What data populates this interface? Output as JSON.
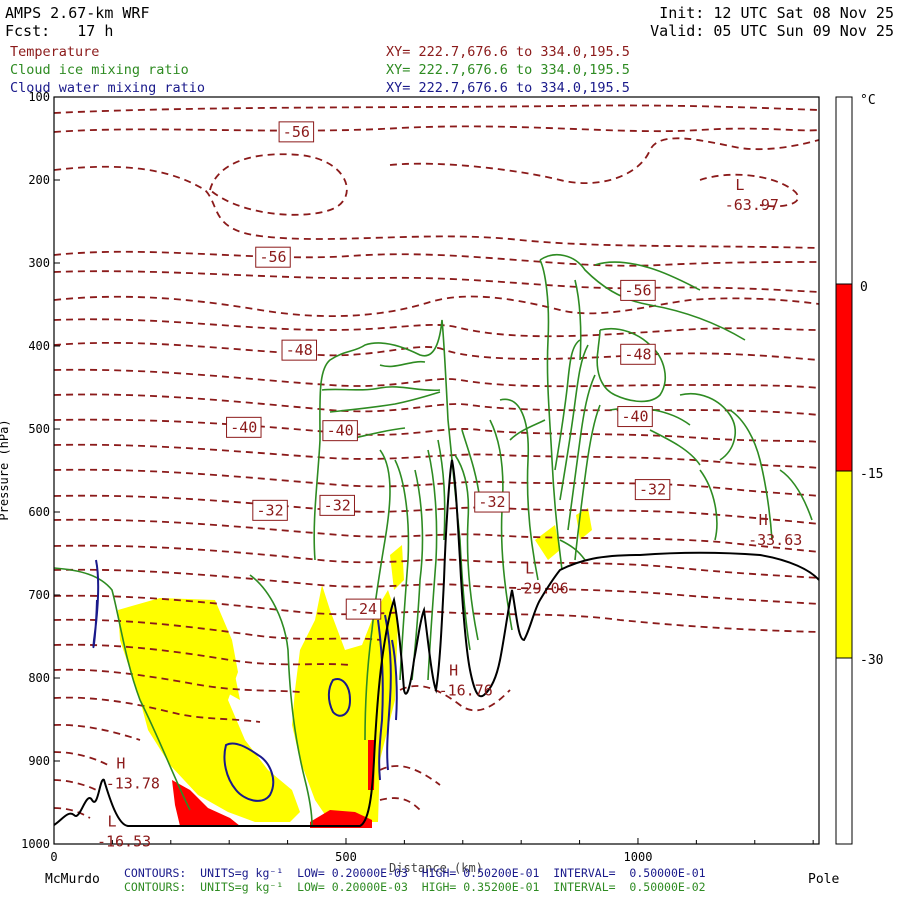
{
  "header": {
    "model": "AMPS 2.67-km WRF",
    "forecast": "Fcst:   17 h",
    "init": "Init: 12 UTC Sat 08 Nov 25",
    "valid": "Valid: 05 UTC Sun 09 Nov 25"
  },
  "fields": [
    {
      "name": "Temperature",
      "xy": "XY= 222.7,676.6 to 334.0,195.5",
      "color": "#8b1a1a"
    },
    {
      "name": "Cloud ice mixing ratio",
      "xy": "XY= 222.7,676.6 to 334.0,195.5",
      "color": "#2e8b22"
    },
    {
      "name": "Cloud water mixing ratio",
      "xy": "XY= 222.7,676.6 to 334.0,195.5",
      "color": "#1a1a8b"
    }
  ],
  "colorbar": {
    "unit": "°C",
    "levels": [
      "0",
      "-15",
      "-30"
    ],
    "colors": {
      "red": "#ff0000",
      "yellow": "#ffff00",
      "white": "#ffffff"
    }
  },
  "footer": {
    "left_label": "McMurdo",
    "right_label": "Pole",
    "xaxis_label": "Distance (km)",
    "contours_blue": "CONTOURS:  UNITS=g kg⁻¹  LOW= 0.20000E-03  HIGH= 0.50200E-01  INTERVAL=  0.50000E-01",
    "contours_green": "CONTOURS:  UNITS=g kg⁻¹  LOW= 0.20000E-03  HIGH= 0.35200E-01  INTERVAL=  0.50000E-02"
  },
  "chart_data": {
    "type": "contour",
    "ylabel": "Pressure (hPa)",
    "xlabel": "Distance (km)",
    "xlim": [
      0,
      1310
    ],
    "ylim": [
      1000,
      100
    ],
    "xticks": [
      0,
      500,
      1000
    ],
    "yticks": [
      100,
      200,
      300,
      400,
      500,
      600,
      700,
      800,
      900,
      1000
    ],
    "temperature_contour_labels": [
      {
        "text": "-56",
        "x": 415,
        "p": 142
      },
      {
        "text": "-56",
        "x": 375,
        "p": 293
      },
      {
        "text": "-56",
        "x": 1000,
        "p": 333
      },
      {
        "text": "-48",
        "x": 420,
        "p": 405
      },
      {
        "text": "-48",
        "x": 1000,
        "p": 410
      },
      {
        "text": "-40",
        "x": 325,
        "p": 498
      },
      {
        "text": "-40",
        "x": 490,
        "p": 502
      },
      {
        "text": "-40",
        "x": 995,
        "p": 485
      },
      {
        "text": "-32",
        "x": 370,
        "p": 598
      },
      {
        "text": "-32",
        "x": 485,
        "p": 592
      },
      {
        "text": "-32",
        "x": 750,
        "p": 588
      },
      {
        "text": "-32",
        "x": 1025,
        "p": 573
      },
      {
        "text": "-24",
        "x": 530,
        "p": 717
      }
    ],
    "extrema": [
      {
        "kind": "L",
        "value": "-63.97",
        "x": 1195,
        "p": 224
      },
      {
        "kind": "H",
        "value": "-33.63",
        "x": 1235,
        "p": 628
      },
      {
        "kind": "H",
        "value": "-16.76",
        "x": 705,
        "p": 809
      },
      {
        "kind": "L",
        "value": "-29.06",
        "x": 835,
        "p": 686
      },
      {
        "kind": "H",
        "value": "-13.78",
        "x": 135,
        "p": 921
      },
      {
        "kind": "L",
        "value": "-16.53",
        "x": 120,
        "p": 991
      }
    ]
  }
}
